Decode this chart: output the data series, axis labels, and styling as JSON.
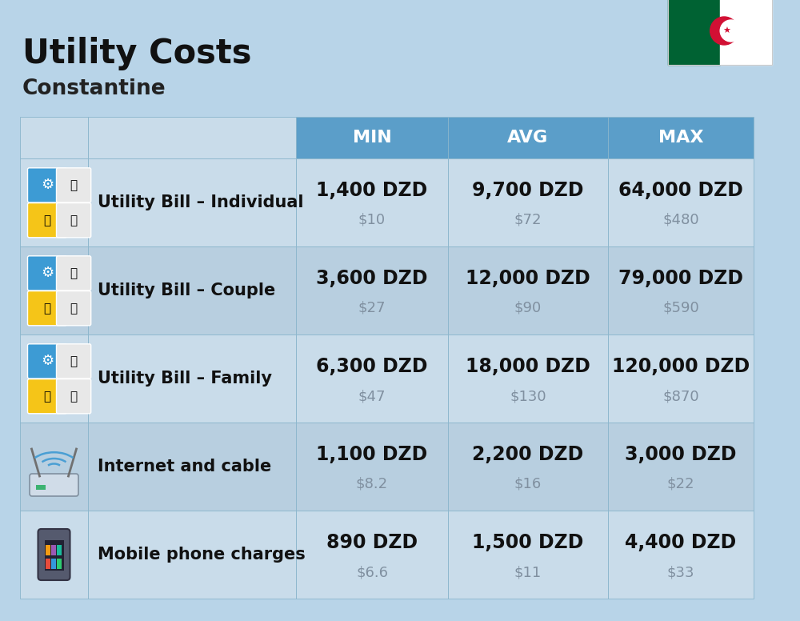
{
  "title": "Utility Costs",
  "subtitle": "Constantine",
  "background_color": "#b8d4e8",
  "header_color": "#5b9ec9",
  "header_text_color": "#ffffff",
  "row_color_odd": "#c9dcea",
  "row_color_even": "#b8cfe0",
  "cell_border_color": "#9ab8d0",
  "columns": [
    "MIN",
    "AVG",
    "MAX"
  ],
  "rows": [
    {
      "label": "Utility Bill – Individual",
      "icon_type": "utility",
      "min_dzd": "1,400 DZD",
      "min_usd": "$10",
      "avg_dzd": "9,700 DZD",
      "avg_usd": "$72",
      "max_dzd": "64,000 DZD",
      "max_usd": "$480"
    },
    {
      "label": "Utility Bill – Couple",
      "icon_type": "utility",
      "min_dzd": "3,600 DZD",
      "min_usd": "$27",
      "avg_dzd": "12,000 DZD",
      "avg_usd": "$90",
      "max_dzd": "79,000 DZD",
      "max_usd": "$590"
    },
    {
      "label": "Utility Bill – Family",
      "icon_type": "utility",
      "min_dzd": "6,300 DZD",
      "min_usd": "$47",
      "avg_dzd": "18,000 DZD",
      "avg_usd": "$130",
      "max_dzd": "120,000 DZD",
      "max_usd": "$870"
    },
    {
      "label": "Internet and cable",
      "icon_type": "internet",
      "min_dzd": "1,100 DZD",
      "min_usd": "$8.2",
      "avg_dzd": "2,200 DZD",
      "avg_usd": "$16",
      "max_dzd": "3,000 DZD",
      "max_usd": "$22"
    },
    {
      "label": "Mobile phone charges",
      "icon_type": "mobile",
      "min_dzd": "890 DZD",
      "min_usd": "$6.6",
      "avg_dzd": "1,500 DZD",
      "avg_usd": "$11",
      "max_dzd": "4,400 DZD",
      "max_usd": "$33"
    }
  ],
  "title_fontsize": 30,
  "subtitle_fontsize": 19,
  "label_fontsize": 15,
  "value_fontsize": 17,
  "usd_fontsize": 13,
  "header_fontsize": 16
}
